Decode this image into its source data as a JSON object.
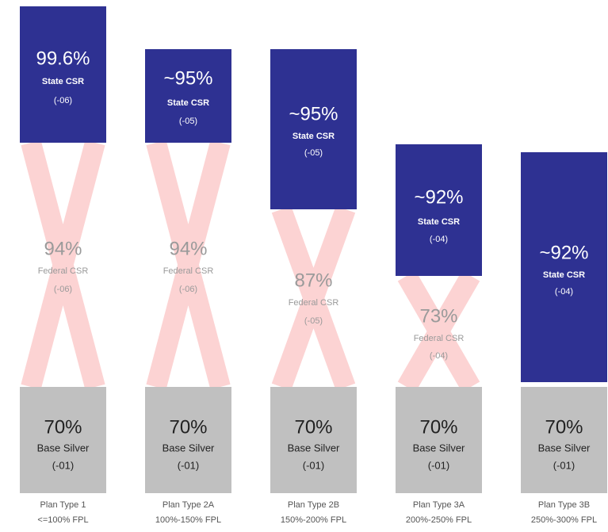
{
  "columns": [
    {
      "plan": "Plan Type 1",
      "fpl": "<=100% FPL",
      "state": {
        "pct": "99.6%",
        "name": "State CSR",
        "code": "(-06)"
      },
      "federal": {
        "pct": "94%",
        "name": "Federal CSR",
        "code": "(-06)"
      },
      "base": {
        "pct": "70%",
        "name": "Base Silver",
        "code": "(-01)"
      }
    },
    {
      "plan": "Plan Type 2A",
      "fpl": "100%-150% FPL",
      "state": {
        "pct": "~95%",
        "name": "State CSR",
        "code": "(-05)"
      },
      "federal": {
        "pct": "94%",
        "name": "Federal CSR",
        "code": "(-06)"
      },
      "base": {
        "pct": "70%",
        "name": "Base Silver",
        "code": "(-01)"
      }
    },
    {
      "plan": "Plan Type 2B",
      "fpl": "150%-200% FPL",
      "state": {
        "pct": "~95%",
        "name": "State CSR",
        "code": "(-05)"
      },
      "federal": {
        "pct": "87%",
        "name": "Federal CSR",
        "code": "(-05)"
      },
      "base": {
        "pct": "70%",
        "name": "Base Silver",
        "code": "(-01)"
      }
    },
    {
      "plan": "Plan Type 3A",
      "fpl": "200%-250% FPL",
      "state": {
        "pct": "~92%",
        "name": "State CSR",
        "code": "(-04)"
      },
      "federal": {
        "pct": "73%",
        "name": "Federal CSR",
        "code": "(-04)"
      },
      "base": {
        "pct": "70%",
        "name": "Base Silver",
        "code": "(-01)"
      }
    },
    {
      "plan": "Plan Type 3B",
      "fpl": "250%-300% FPL",
      "state": {
        "pct": "~92%",
        "name": "State CSR",
        "code": "(-04)"
      },
      "base": {
        "pct": "70%",
        "name": "Base Silver",
        "code": "(-01)"
      }
    }
  ]
}
